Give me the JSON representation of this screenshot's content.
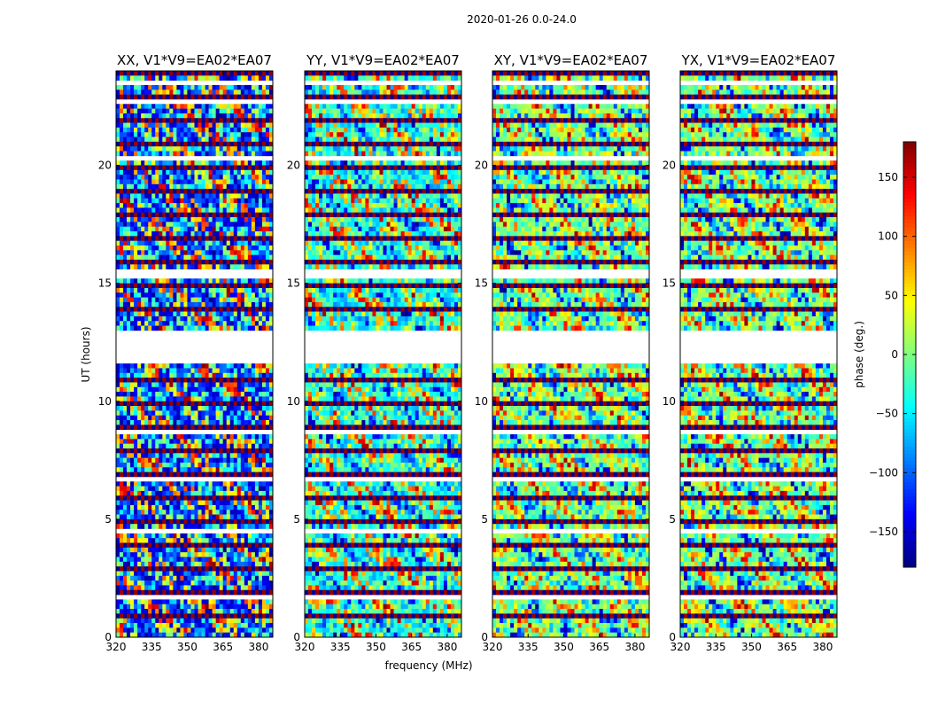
{
  "chart_data": {
    "type": "heatmap",
    "title": "2020-01-26 0.0-24.0",
    "xlabel": "frequency (MHz)",
    "ylabel": "UT (hours)",
    "colorbar_label": "phase (deg.)",
    "colormap": "jet",
    "xlim": [
      320,
      386
    ],
    "ylim": [
      0,
      24
    ],
    "xticks": [
      "320",
      "335",
      "350",
      "365",
      "380"
    ],
    "yticks": [
      "0",
      "5",
      "10",
      "15",
      "20"
    ],
    "colorbar": {
      "range": [
        -180,
        180
      ],
      "ticks": [
        "−150",
        "−100",
        "−50",
        "0",
        "50",
        "100",
        "150"
      ],
      "tick_values": [
        -150,
        -100,
        -50,
        0,
        50,
        100,
        150
      ]
    },
    "flagged_ut_gaps": [
      [
        11.7,
        12.9
      ],
      [
        15.3,
        15.5
      ],
      [
        8.6,
        8.8
      ],
      [
        6.6,
        6.8
      ],
      [
        4.5,
        4.6
      ],
      [
        2.0,
        2.1
      ],
      [
        1.6,
        1.7
      ],
      [
        20.2,
        20.3
      ],
      [
        22.6,
        22.7
      ],
      [
        23.4,
        23.5
      ]
    ],
    "panels": [
      {
        "title": "XX, V1*V9=EA02*EA07",
        "dominant_phase": -130
      },
      {
        "title": "YY, V1*V9=EA02*EA07",
        "dominant_phase": -40
      },
      {
        "title": "XY, V1*V9=EA02*EA07",
        "dominant_phase": 0
      },
      {
        "title": "YX, V1*V9=EA02*EA07",
        "dominant_phase": 0
      }
    ]
  }
}
